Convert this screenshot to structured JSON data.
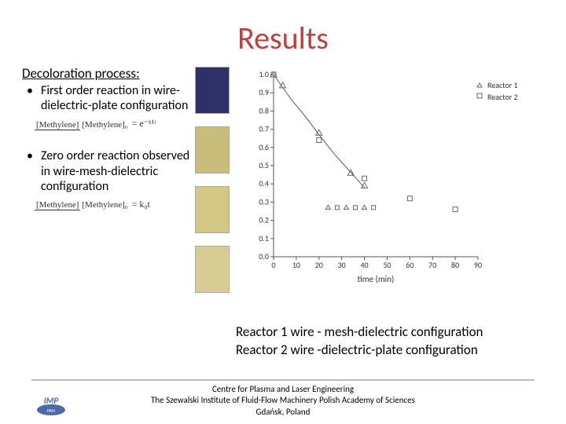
{
  "title": "Results",
  "subhead": "Decoloration process:",
  "bullet1": "First order reaction in wire-dielectric-plate configuration",
  "bullet2": "Zero order reaction observed in wire-mesh-dielectric configuration",
  "eq1_top": "[Methylene]",
  "eq1_bot": "[Methylene]₀",
  "eq1_rhs": " = e⁻ᵏ¹ᵗ",
  "eq2_top": "[Methylene]",
  "eq2_bot": "[Methylene]₀",
  "eq2_rhs": " = k₀t",
  "swatch_colors": [
    "#2d3168",
    "#c8bd7a",
    "#d2c785",
    "#d7cd93"
  ],
  "chart": {
    "bg": "#ffffff",
    "axis_color": "#555",
    "grid_color": "#e0e0e0",
    "xlabel": "time (min)",
    "xlim": [
      0,
      90
    ],
    "xtick_step": 10,
    "ylim": [
      0,
      1.0
    ],
    "ytick_step": 0.1,
    "legend": [
      {
        "label": "Reactor 1",
        "marker": "triangle"
      },
      {
        "label": "Reactor 2",
        "marker": "square"
      }
    ],
    "series_line": {
      "points": [
        [
          0,
          1.0
        ],
        [
          4,
          0.93
        ],
        [
          8,
          0.86
        ],
        [
          14,
          0.77
        ],
        [
          20,
          0.67
        ],
        [
          27,
          0.56
        ],
        [
          35,
          0.45
        ],
        [
          40,
          0.38
        ]
      ],
      "color": "#555",
      "width": 1
    },
    "reactor1_triangles": [
      [
        0,
        1.0
      ],
      [
        4,
        0.94
      ],
      [
        20,
        0.68
      ],
      [
        34,
        0.46
      ],
      [
        40,
        0.39
      ]
    ],
    "reactor2_squares": [
      [
        0,
        1.0
      ],
      [
        20,
        0.64
      ],
      [
        40,
        0.43
      ],
      [
        60,
        0.32
      ],
      [
        80,
        0.26
      ]
    ],
    "bottom_markers": [
      [
        24,
        0.27
      ],
      [
        28,
        0.27
      ],
      [
        32,
        0.27
      ],
      [
        36,
        0.27
      ],
      [
        40,
        0.27
      ],
      [
        44,
        0.27
      ]
    ],
    "marker_color": "#666",
    "tick_fontsize": 10,
    "label_fontsize": 11
  },
  "caption1": "Reactor 1 wire - mesh-dielectric configuration",
  "caption2": "Reactor 2 wire -dielectric-plate configuration",
  "footer1": "Centre for Plasma and Laser Engineering",
  "footer2": "The Szewalski Institute of Fluid-Flow Machinery Polish Academy of  Sciences",
  "footer3": "Gdańsk, Poland",
  "logo_bg": "#4a6aa8",
  "logo_text": "IMP"
}
